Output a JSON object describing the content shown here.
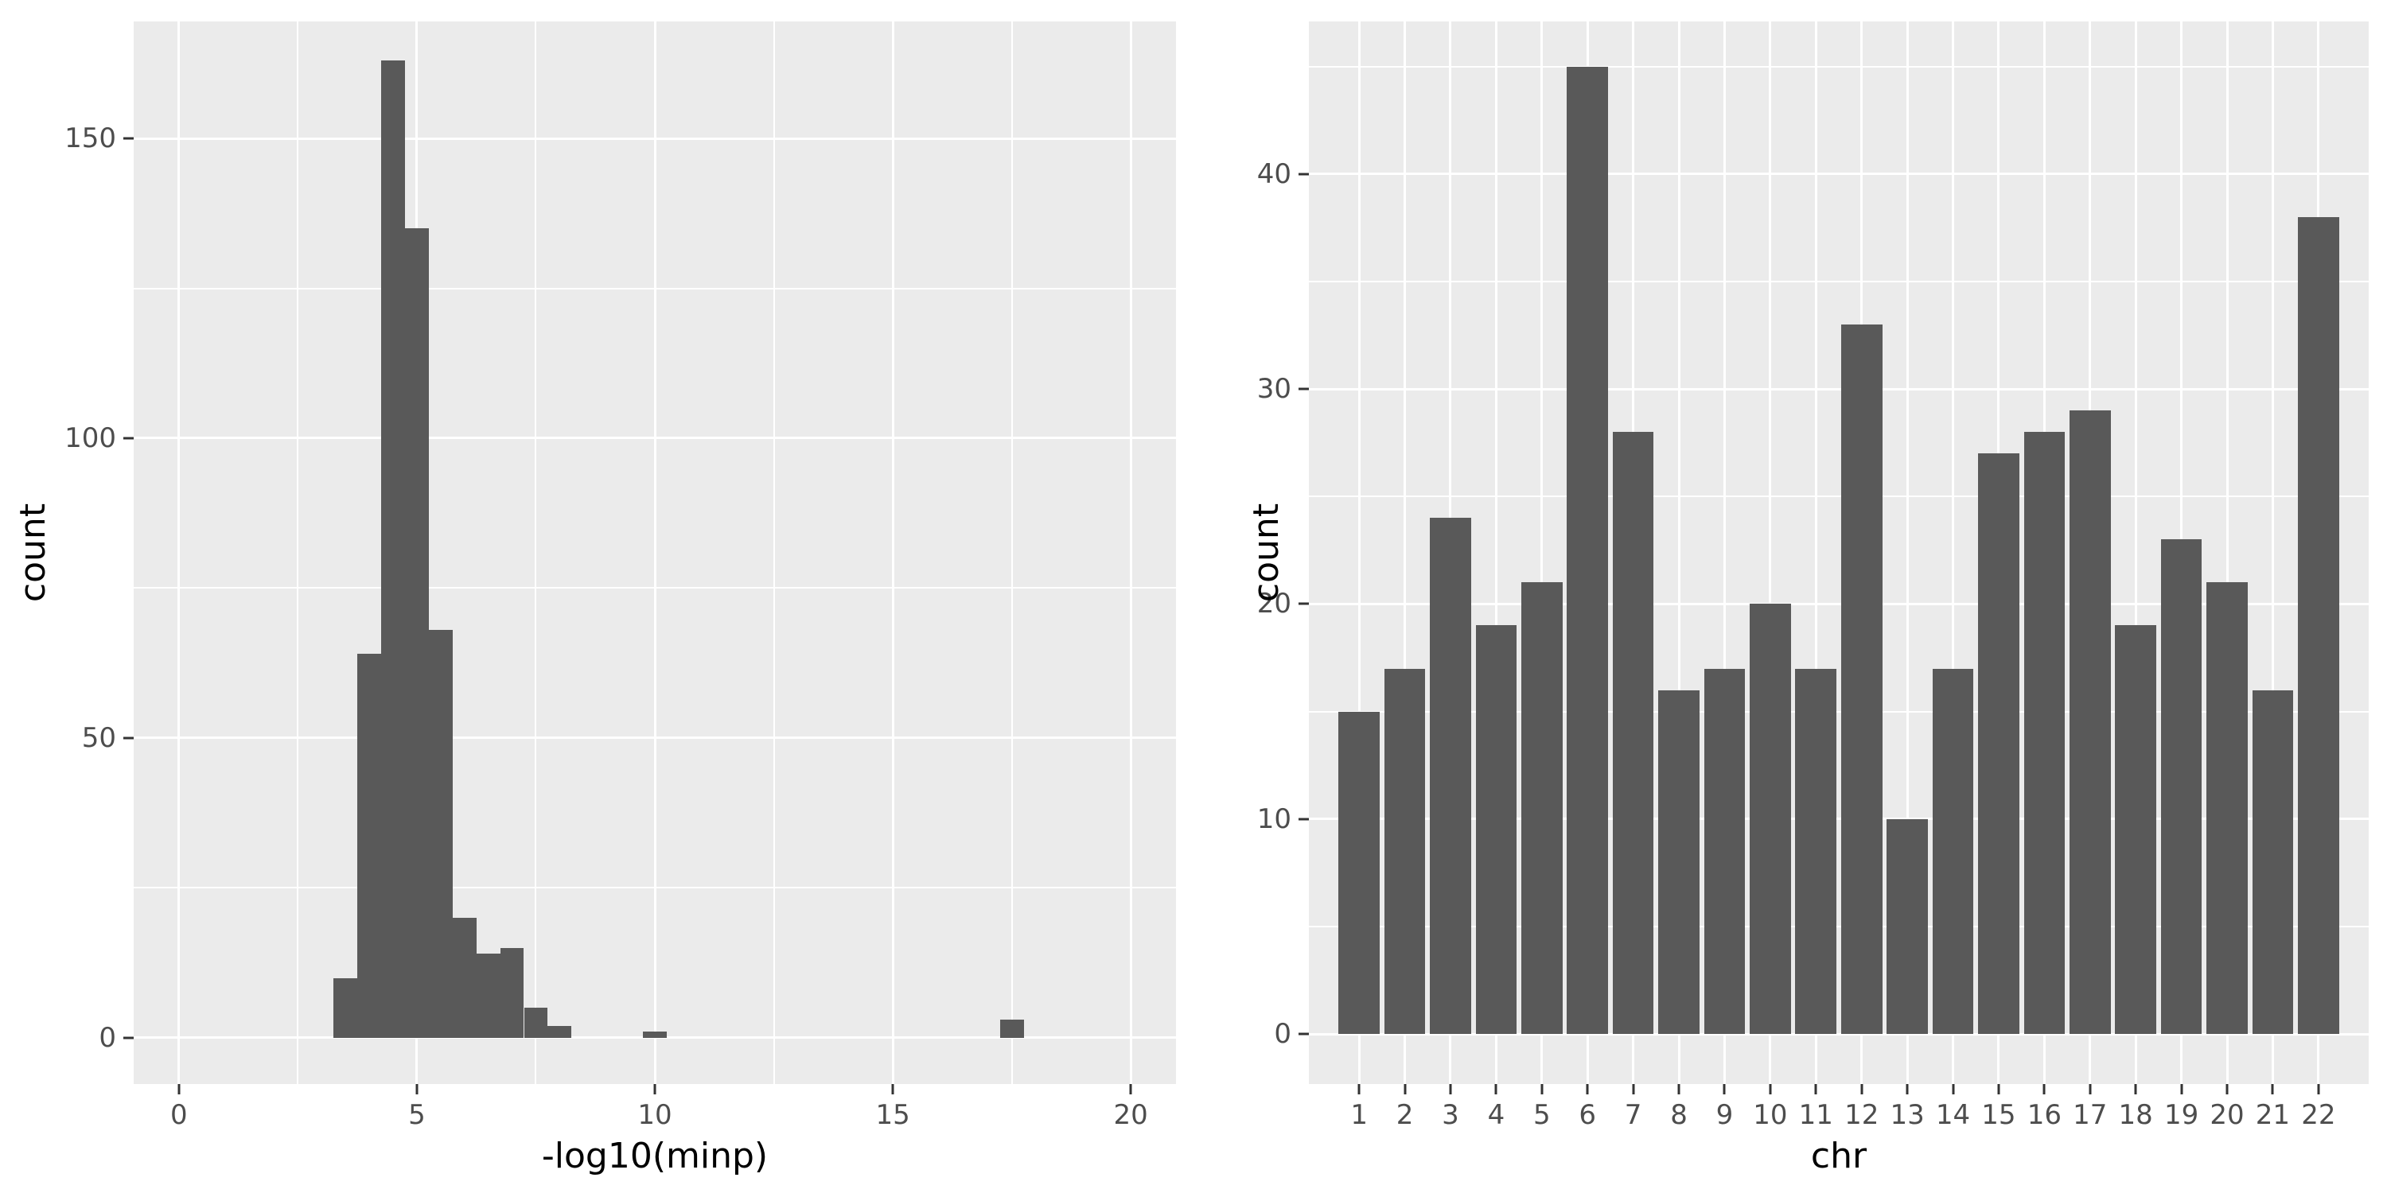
{
  "colors": {
    "background": "#FFFFFF",
    "panel_background": "#EBEBEB",
    "grid": "#FFFFFF",
    "bar_fill": "#595959",
    "tick_text": "#4D4D4D",
    "axis_title": "#000000",
    "tick_mark": "#333333"
  },
  "chart_data": [
    {
      "type": "bar",
      "subtype": "histogram",
      "title": "",
      "xlabel": "-log10(minp)",
      "ylabel": "count",
      "bin_width": 0.5,
      "bin_centers": [
        3.5,
        4.0,
        4.5,
        5.0,
        5.5,
        6.0,
        6.5,
        7.0,
        7.5,
        8.0,
        10.0,
        17.5
      ],
      "values": [
        10,
        64,
        163,
        135,
        68,
        20,
        14,
        15,
        5,
        2,
        1,
        3
      ],
      "x_major_ticks": [
        0,
        5,
        10,
        15,
        20
      ],
      "x_tick_labels": [
        "0",
        "5",
        "10",
        "15",
        "20"
      ],
      "x_minor_ticks": [
        2.5,
        7.5,
        12.5,
        17.5
      ],
      "y_major_ticks": [
        0,
        50,
        100,
        150
      ],
      "y_tick_labels": [
        "0",
        "50",
        "100",
        "150"
      ],
      "y_minor_ticks": [
        25,
        75,
        125
      ],
      "xlim": [
        -0.95,
        20.95
      ],
      "ylim": [
        -7.7,
        169.5
      ],
      "grid": true,
      "legend": false
    },
    {
      "type": "bar",
      "subtype": "categorical",
      "title": "",
      "xlabel": "chr",
      "ylabel": "count",
      "categories": [
        "1",
        "2",
        "3",
        "4",
        "5",
        "6",
        "7",
        "8",
        "9",
        "10",
        "11",
        "12",
        "13",
        "14",
        "15",
        "16",
        "17",
        "18",
        "19",
        "20",
        "21",
        "22"
      ],
      "values": [
        15,
        17,
        24,
        19,
        21,
        45,
        28,
        16,
        17,
        20,
        17,
        33,
        10,
        17,
        27,
        28,
        29,
        19,
        23,
        21,
        16,
        38
      ],
      "y_major_ticks": [
        0,
        10,
        20,
        30,
        40
      ],
      "y_tick_labels": [
        "0",
        "10",
        "20",
        "30",
        "40"
      ],
      "y_minor_ticks": [
        5,
        15,
        25,
        35,
        45
      ],
      "ylim": [
        -2.33,
        47.1
      ],
      "bar_rel_width": 0.9,
      "cat_expand": 0.6,
      "grid": true,
      "legend": false
    }
  ]
}
